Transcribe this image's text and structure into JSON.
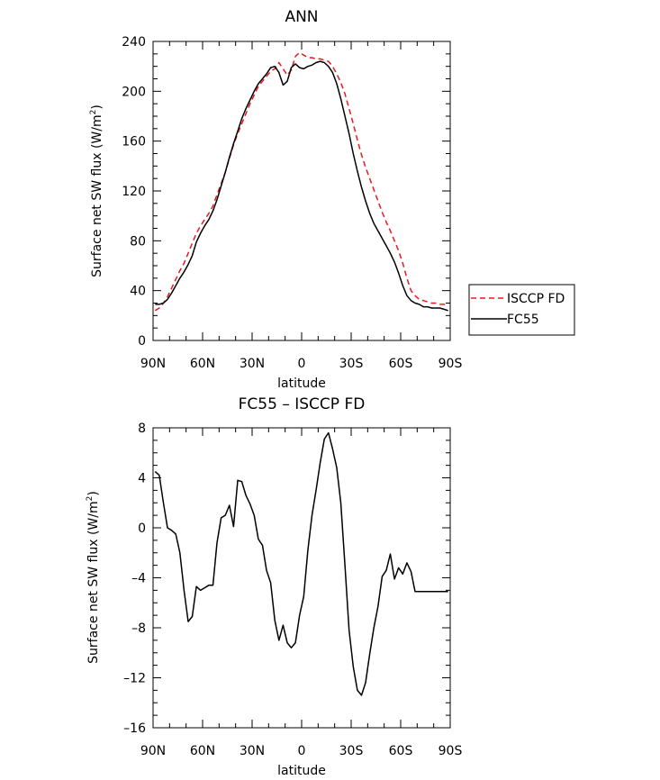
{
  "chart_data": [
    {
      "type": "line",
      "title": "ANN",
      "xlabel": "latitude",
      "ylabel": "Surface net SW flux (W/m²)",
      "ylabel_main": "Surface net SW flux (W/m",
      "ylabel_sup": "2",
      "ylabel_end": ")",
      "xlim": [
        90,
        -90
      ],
      "ylim": [
        0,
        240
      ],
      "xticks": [
        90,
        60,
        30,
        0,
        -30,
        -60,
        -90
      ],
      "xtick_labels": [
        "90N",
        "60N",
        "30N",
        "0",
        "30S",
        "60S",
        "90S"
      ],
      "yticks": [
        0,
        40,
        80,
        120,
        160,
        200,
        240
      ],
      "ytick_labels": [
        "0",
        "40",
        "80",
        "120",
        "160",
        "200",
        "240"
      ],
      "grid": false,
      "legend_position": "right",
      "series": [
        {
          "name": "ISCCP FD",
          "color": "#e8191f",
          "dash": "dashed",
          "x": [
            88.75,
            86.25,
            83.75,
            81.25,
            78.75,
            76.25,
            73.75,
            71.25,
            68.75,
            66.25,
            63.75,
            61.25,
            58.75,
            56.25,
            53.75,
            51.25,
            48.75,
            46.25,
            43.75,
            41.25,
            38.75,
            36.25,
            33.75,
            31.25,
            28.75,
            26.25,
            23.75,
            21.25,
            18.75,
            16.25,
            13.75,
            11.25,
            8.75,
            6.25,
            3.75,
            1.25,
            -1.25,
            -3.75,
            -6.25,
            -8.75,
            -11.25,
            -13.75,
            -16.25,
            -18.75,
            -21.25,
            -23.75,
            -26.25,
            -28.75,
            -31.25,
            -33.75,
            -36.25,
            -38.75,
            -41.25,
            -43.75,
            -46.25,
            -48.75,
            -51.25,
            -53.75,
            -56.25,
            -58.75,
            -61.25,
            -63.75,
            -66.25,
            -68.75,
            -71.25,
            -73.75,
            -76.25,
            -78.75,
            -81.25,
            -83.75,
            -86.25,
            -88.75
          ],
          "values": [
            24,
            26,
            30,
            35,
            42,
            49,
            56,
            62,
            70,
            78,
            86,
            92,
            97,
            102,
            108,
            117,
            126,
            135,
            146,
            157,
            166,
            174,
            182,
            190,
            197,
            204,
            208,
            212,
            216,
            218,
            223,
            218,
            213,
            217,
            228,
            231,
            229,
            227,
            227,
            226,
            226,
            225,
            224,
            220,
            214,
            207,
            198,
            186,
            174,
            161,
            149,
            139,
            130,
            121,
            112,
            103,
            95,
            88,
            80,
            72,
            62,
            50,
            40,
            36,
            33,
            32,
            31,
            30,
            30,
            29,
            29,
            29
          ]
        },
        {
          "name": "FC55",
          "color": "#000000",
          "dash": "solid",
          "x": [
            88.75,
            86.25,
            83.75,
            81.25,
            78.75,
            76.25,
            73.75,
            71.25,
            68.75,
            66.25,
            63.75,
            61.25,
            58.75,
            56.25,
            53.75,
            51.25,
            48.75,
            46.25,
            43.75,
            41.25,
            38.75,
            36.25,
            33.75,
            31.25,
            28.75,
            26.25,
            23.75,
            21.25,
            18.75,
            16.25,
            13.75,
            11.25,
            8.75,
            6.25,
            3.75,
            1.25,
            -1.25,
            -3.75,
            -6.25,
            -8.75,
            -11.25,
            -13.75,
            -16.25,
            -18.75,
            -21.25,
            -23.75,
            -26.25,
            -28.75,
            -31.25,
            -33.75,
            -36.25,
            -38.75,
            -41.25,
            -43.75,
            -46.25,
            -48.75,
            -51.25,
            -53.75,
            -56.25,
            -58.75,
            -61.25,
            -63.75,
            -66.25,
            -68.75,
            -71.25,
            -73.75,
            -76.25,
            -78.75,
            -81.25,
            -83.75,
            -86.25,
            -88.75
          ],
          "values": [
            29,
            29,
            30,
            33,
            38,
            44,
            50,
            55,
            61,
            68,
            79,
            86,
            92,
            97,
            104,
            113,
            124,
            135,
            147,
            158,
            168,
            178,
            186,
            193,
            200,
            206,
            210,
            214,
            219,
            220,
            215,
            205,
            208,
            219,
            222,
            219,
            218,
            220,
            221,
            223,
            224,
            223,
            220,
            215,
            206,
            194,
            180,
            166,
            150,
            136,
            123,
            112,
            102,
            94,
            88,
            82,
            76,
            70,
            63,
            54,
            44,
            36,
            32,
            30,
            29,
            27,
            27,
            26,
            26,
            26,
            25,
            24
          ]
        }
      ]
    },
    {
      "type": "line",
      "title": "FC55 – ISCCP FD",
      "xlabel": "latitude",
      "ylabel": "Surface net SW flux (W/m²)",
      "ylabel_main": "Surface net SW flux (W/m",
      "ylabel_sup": "2",
      "ylabel_end": ")",
      "xlim": [
        90,
        -90
      ],
      "ylim": [
        -16,
        8
      ],
      "xticks": [
        90,
        60,
        30,
        0,
        -30,
        -60,
        -90
      ],
      "xtick_labels": [
        "90N",
        "60N",
        "30N",
        "0",
        "30S",
        "60S",
        "90S"
      ],
      "yticks": [
        -16,
        -12,
        -8,
        -4,
        0,
        4,
        8
      ],
      "ytick_labels": [
        "–16",
        "–12",
        "–8",
        "–4",
        "0",
        "4",
        "8"
      ],
      "grid": false,
      "series": [
        {
          "name": "",
          "color": "#000000",
          "dash": "solid",
          "x": [
            88.75,
            86.25,
            83.75,
            81.25,
            78.75,
            76.25,
            73.75,
            71.25,
            68.75,
            66.25,
            63.75,
            61.25,
            58.75,
            56.25,
            53.75,
            51.25,
            48.75,
            46.25,
            43.75,
            41.25,
            38.75,
            36.25,
            33.75,
            31.25,
            28.75,
            26.25,
            23.75,
            21.25,
            18.75,
            16.25,
            13.75,
            11.25,
            8.75,
            6.25,
            3.75,
            1.25,
            -1.25,
            -3.75,
            -6.25,
            -8.75,
            -11.25,
            -13.75,
            -16.25,
            -18.75,
            -21.25,
            -23.75,
            -26.25,
            -28.75,
            -31.25,
            -33.75,
            -36.25,
            -38.75,
            -41.25,
            -43.75,
            -46.25,
            -48.75,
            -51.25,
            -53.75,
            -56.25,
            -58.75,
            -61.25,
            -63.75,
            -66.25,
            -68.75,
            -71.25,
            -73.75,
            -76.25,
            -78.75,
            -81.25,
            -83.75,
            -86.25,
            -88.75
          ],
          "values": [
            4.5,
            4.2,
            2.0,
            0.0,
            -0.2,
            -0.5,
            -2.0,
            -5.0,
            -7.5,
            -7.1,
            -4.7,
            -5.0,
            -4.8,
            -4.6,
            -4.6,
            -1.2,
            0.8,
            1.0,
            1.8,
            0.1,
            3.8,
            3.7,
            2.6,
            1.9,
            1.0,
            -0.9,
            -1.4,
            -3.4,
            -4.4,
            -7.4,
            -9.0,
            -7.8,
            -9.2,
            -9.6,
            -9.2,
            -7.0,
            -5.5,
            -1.8,
            1.0,
            3.0,
            5.2,
            7.1,
            7.6,
            6.3,
            4.8,
            2.0,
            -3.0,
            -8.2,
            -11.1,
            -13.0,
            -13.4,
            -12.4,
            -10.1,
            -8.0,
            -6.3,
            -3.9,
            -3.4,
            -2.1,
            -4.1,
            -3.2,
            -3.7,
            -2.8,
            -3.5,
            -5.1,
            -5.1,
            -5.1,
            -5.1,
            -5.1,
            -5.1,
            -5.1,
            -5.1,
            -5.1
          ]
        }
      ]
    }
  ],
  "legend": [
    {
      "label": "ISCCP FD",
      "color": "#e8191f",
      "dash": "dashed"
    },
    {
      "label": "FC55",
      "color": "#000000",
      "dash": "solid"
    }
  ]
}
